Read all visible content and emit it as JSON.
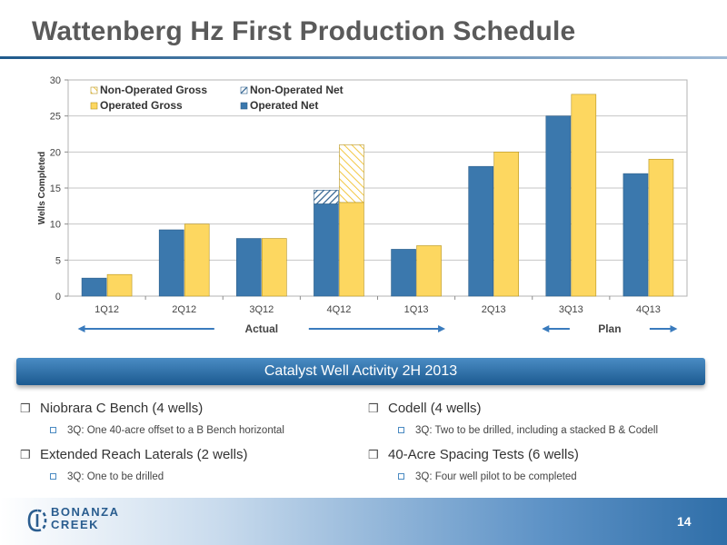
{
  "title": "Wattenberg Hz First Production Schedule",
  "banner": "Catalyst Well Activity 2H 2013",
  "bullets_left": [
    {
      "heading": "Niobrara C Bench (4 wells)",
      "sub": "3Q: One 40-acre offset to a B Bench horizontal"
    },
    {
      "heading": "Extended Reach Laterals (2 wells)",
      "sub": "3Q: One to be drilled"
    }
  ],
  "bullets_right": [
    {
      "heading": "Codell (4 wells)",
      "sub": "3Q: Two to be drilled, including a stacked B & Codell"
    },
    {
      "heading": "40-Acre Spacing Tests (6 wells)",
      "sub": "3Q: Four well pilot to be completed"
    }
  ],
  "logo": {
    "line1": "BONANZA",
    "line2": "CREEK"
  },
  "page_number": "14",
  "chart_data": {
    "type": "bar",
    "ylabel": "Wells Completed",
    "ylim": [
      0,
      30
    ],
    "yticks": [
      0,
      5,
      10,
      15,
      20,
      25,
      30
    ],
    "categories": [
      "1Q12",
      "2Q12",
      "3Q12",
      "4Q12",
      "1Q13",
      "2Q13",
      "3Q13",
      "4Q13"
    ],
    "series": [
      {
        "name": "Operated Net",
        "values": [
          2.5,
          9.2,
          8,
          12.8,
          6.5,
          18,
          25,
          17
        ],
        "color": "#3b78ad"
      },
      {
        "name": "Operated Gross",
        "values": [
          3,
          10,
          8,
          13,
          7,
          20,
          28,
          19
        ],
        "color": "#fdd760"
      },
      {
        "name": "Non-Operated Net",
        "values": [
          0,
          0,
          0,
          1.9,
          0,
          0,
          0,
          0
        ],
        "color": "#3b78ad",
        "pattern": "hatch"
      },
      {
        "name": "Non-Operated Gross",
        "values": [
          0,
          0,
          0,
          8,
          0,
          0,
          0,
          0
        ],
        "color": "#fdd760",
        "pattern": "hatch"
      }
    ],
    "legend_position": "top-left",
    "grid": true,
    "annotations": [
      {
        "label": "Actual",
        "from": "1Q12",
        "to": "1Q13",
        "arrow": "both"
      },
      {
        "label": "Plan",
        "from": "3Q13",
        "to": "4Q13",
        "arrow": "both"
      }
    ]
  }
}
